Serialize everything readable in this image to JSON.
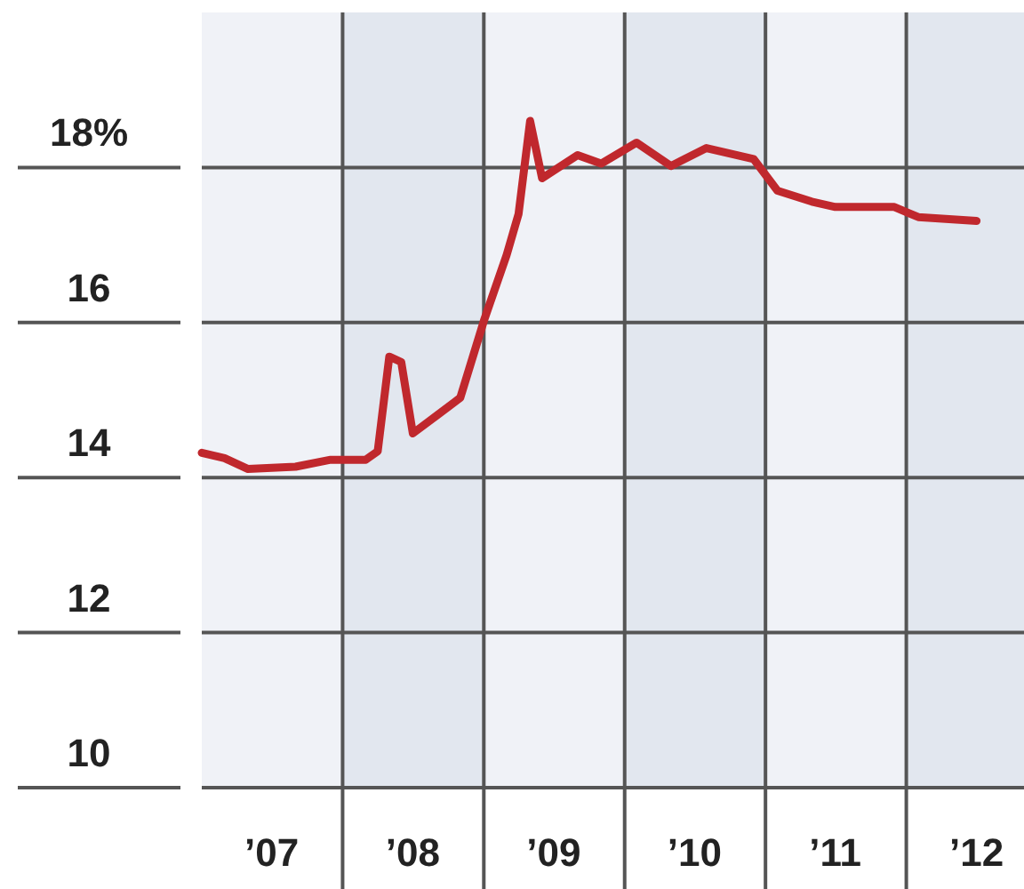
{
  "chart_data": {
    "type": "line",
    "x": [
      "2007-01",
      "2007-03",
      "2007-05",
      "2007-09",
      "2007-12",
      "2008-03",
      "2008-04",
      "2008-05",
      "2008-06",
      "2008-07",
      "2008-09",
      "2008-11",
      "2009-01",
      "2009-03",
      "2009-04",
      "2009-05",
      "2009-06",
      "2009-09",
      "2009-11",
      "2010-02",
      "2010-05",
      "2010-08",
      "2010-12",
      "2011-02",
      "2011-05",
      "2011-07",
      "2011-12",
      "2012-02",
      "2012-07"
    ],
    "series": [
      {
        "color": "#c0282d",
        "values": [
          14.32,
          14.25,
          14.11,
          14.14,
          14.23,
          14.23,
          14.34,
          15.56,
          15.49,
          14.57,
          14.8,
          15.03,
          16.02,
          16.87,
          17.4,
          18.6,
          17.86,
          18.16,
          18.05,
          18.32,
          18.02,
          18.25,
          18.11,
          17.7,
          17.56,
          17.49,
          17.49,
          17.36,
          17.31
        ]
      }
    ],
    "xlim": [
      "2007-01",
      "2012-11"
    ],
    "xticks": [
      {
        "value": "2007-07",
        "label": "’07"
      },
      {
        "value": "2008-07",
        "label": "’08"
      },
      {
        "value": "2009-07",
        "label": "’09"
      },
      {
        "value": "2010-07",
        "label": "’10"
      },
      {
        "value": "2011-07",
        "label": "’11"
      },
      {
        "value": "2012-07",
        "label": "’12"
      }
    ],
    "ylim": [
      10,
      20
    ],
    "yticks": [
      10,
      12,
      14,
      16,
      {
        "value": 18,
        "label": "18%"
      }
    ],
    "grid": "y",
    "bands": [
      {
        "axis": "x",
        "from": "2008-01",
        "to": "2009-01",
        "color": "#e2e7ef"
      },
      {
        "axis": "x",
        "from": "2010-01",
        "to": "2011-01",
        "color": "#e2e7ef"
      },
      {
        "axis": "x",
        "from": "2012-01",
        "to": "2012-11",
        "color": "#e2e7ef"
      }
    ],
    "ref_lines": [
      {
        "axis": "x",
        "value": "2008-01",
        "color": "#555555"
      },
      {
        "axis": "x",
        "value": "2009-01",
        "color": "#555555"
      },
      {
        "axis": "x",
        "value": "2010-01",
        "color": "#555555"
      },
      {
        "axis": "x",
        "value": "2011-01",
        "color": "#555555"
      },
      {
        "axis": "x",
        "value": "2012-01",
        "color": "#555555"
      }
    ]
  }
}
